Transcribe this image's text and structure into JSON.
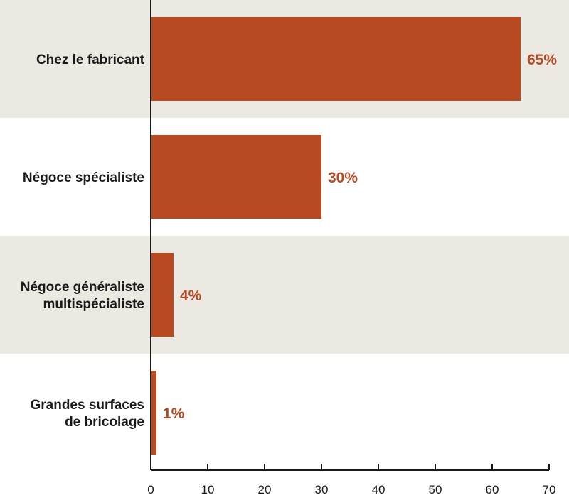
{
  "chart_data": {
    "type": "bar",
    "orientation": "horizontal",
    "title": "",
    "xlabel": "",
    "ylabel": "",
    "categories": [
      [
        "Chez le fabricant"
      ],
      [
        "Négoce spécialiste"
      ],
      [
        "Négoce généraliste",
        "multispécialiste"
      ],
      [
        "Grandes surfaces",
        "de bricolage"
      ]
    ],
    "values": [
      65,
      30,
      4,
      1
    ],
    "value_labels": [
      "65%",
      "30%",
      "4%",
      "1%"
    ],
    "xlim": [
      0,
      70
    ],
    "xticks": [
      0,
      10,
      20,
      30,
      40,
      50,
      60,
      70
    ],
    "grid": false,
    "legend": "none",
    "colors": {
      "bar": "#b84a22",
      "value_text": "#b84a22",
      "band": "#ebe9e1",
      "axis": "#1a1a1a"
    }
  }
}
